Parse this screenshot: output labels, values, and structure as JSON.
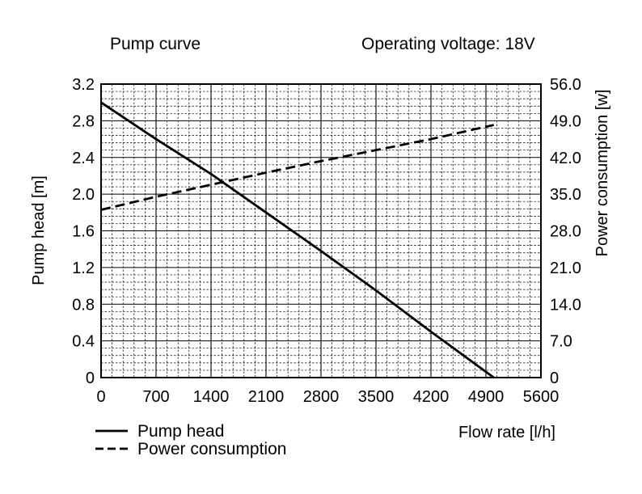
{
  "chart_data": {
    "type": "line",
    "title": "Pump curve",
    "subtitle": "Operating voltage: 18V",
    "xlabel": "Flow rate [l/h]",
    "ylabel_left": "Pump head [m]",
    "ylabel_right": "Power consumption [w]",
    "xlim": [
      0,
      5600
    ],
    "ylim_left": [
      0,
      3.2
    ],
    "ylim_right": [
      0,
      56.0
    ],
    "x_ticks": [
      "0",
      "700",
      "1400",
      "2100",
      "2800",
      "3500",
      "4200",
      "4900",
      "5600"
    ],
    "y_left_ticks": [
      "0",
      "0.4",
      "0.8",
      "1.2",
      "1.6",
      "2.0",
      "2.4",
      "2.8",
      "3.2"
    ],
    "y_right_ticks": [
      "0",
      "7.0",
      "14.0",
      "21.0",
      "28.0",
      "35.0",
      "42.0",
      "49.0",
      "56.0"
    ],
    "grid": true,
    "legend_position": "bottom-left",
    "series": [
      {
        "name": "Pump head",
        "axis": "left",
        "style": "solid",
        "color": "#000000",
        "x": [
          0,
          700,
          1400,
          2100,
          2800,
          3500,
          4200,
          5000
        ],
        "y": [
          3.0,
          2.6,
          2.22,
          1.8,
          1.38,
          0.95,
          0.5,
          0.0
        ]
      },
      {
        "name": "Power consumption",
        "axis": "right",
        "style": "dashed",
        "color": "#000000",
        "x": [
          0,
          700,
          1400,
          2100,
          2800,
          3500,
          4200,
          5000
        ],
        "y": [
          32.0,
          34.5,
          36.8,
          39.1,
          41.3,
          43.4,
          45.5,
          48.2
        ]
      }
    ]
  }
}
